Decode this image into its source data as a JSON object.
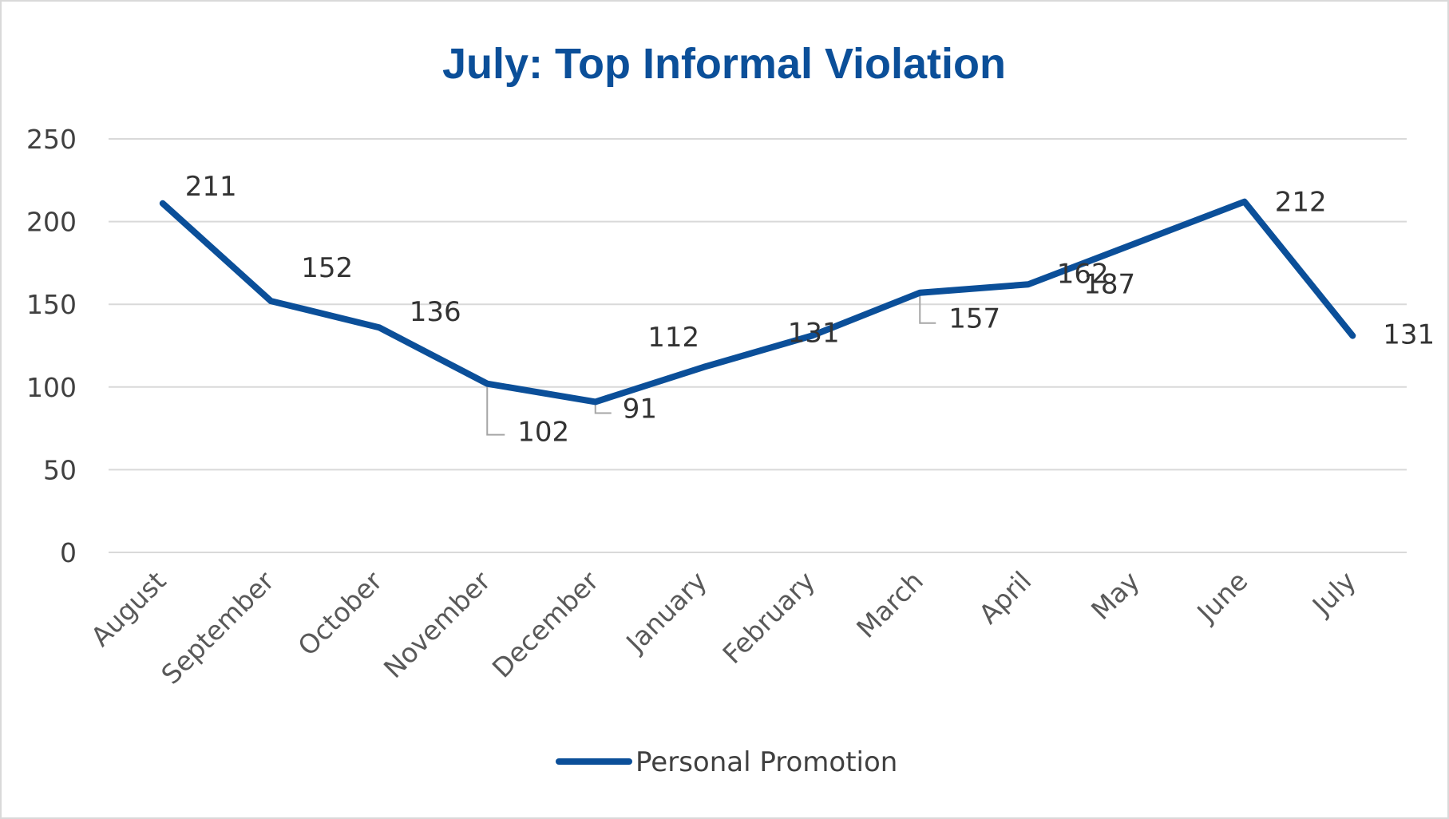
{
  "chart_data": {
    "type": "line",
    "title": "July: Top Informal Violation",
    "categories": [
      "August",
      "September",
      "October",
      "November",
      "December",
      "January",
      "February",
      "March",
      "April",
      "May",
      "June",
      "July"
    ],
    "series": [
      {
        "name": "Personal Promotion",
        "values": [
          211,
          152,
          136,
          102,
          91,
          112,
          131,
          157,
          162,
          187,
          212,
          131
        ]
      }
    ],
    "ylim": [
      0,
      250
    ],
    "yticks": [
      0,
      50,
      100,
      150,
      200,
      250
    ],
    "grid": true,
    "legend_position": "bottom",
    "colors": {
      "series": "#0b4f99",
      "title": "#0b4f99",
      "grid": "#d9d9d9",
      "leader": "#a6a6a6"
    }
  }
}
